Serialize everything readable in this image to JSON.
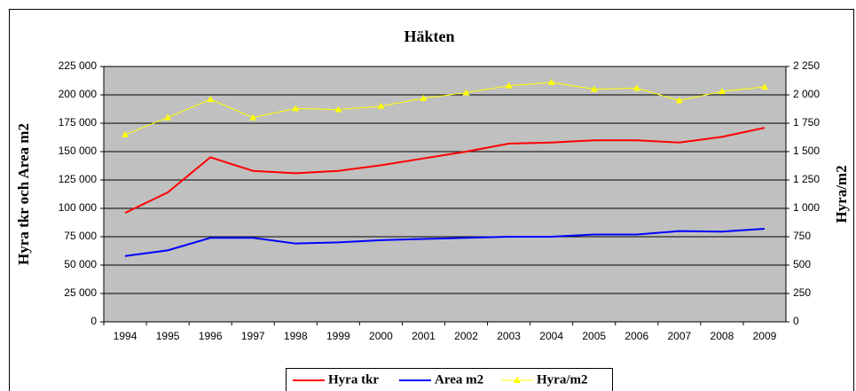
{
  "chart_data": {
    "type": "line",
    "title": "Häkten",
    "y_label": "Hyra tkr och Area m2",
    "y2_label": "Hyra/m2",
    "categories": [
      "1994",
      "1995",
      "1996",
      "1997",
      "1998",
      "1999",
      "2000",
      "2001",
      "2002",
      "2003",
      "2004",
      "2005",
      "2006",
      "2007",
      "2008",
      "2009"
    ],
    "series": [
      {
        "name": "Hyra tkr",
        "color": "#ff0000",
        "values": [
          96000,
          114000,
          145000,
          133000,
          131000,
          133000,
          138000,
          144000,
          150000,
          157000,
          158000,
          160000,
          160000,
          158000,
          163000,
          171000
        ]
      },
      {
        "name": "Area m2",
        "color": "#0000ff",
        "values": [
          58000,
          63000,
          74000,
          74000,
          69000,
          70000,
          72000,
          73000,
          74000,
          75000,
          75000,
          77000,
          77000,
          80000,
          79500,
          82000
        ]
      },
      {
        "name": "Hyra/m2",
        "color": "#ffff00",
        "axis": "y2",
        "marker": "triangle",
        "values": [
          1650,
          1800,
          1960,
          1800,
          1880,
          1870,
          1900,
          1970,
          2020,
          2080,
          2110,
          2050,
          2060,
          1950,
          2030,
          2070
        ]
      }
    ],
    "ylim": [
      0,
      225000
    ],
    "yticks": [
      0,
      {
        "value": 25000,
        "label": "25 000"
      },
      {
        "value": 50000,
        "label": "50 000"
      },
      {
        "value": 75000,
        "label": "75 000"
      },
      {
        "value": 100000,
        "label": "100 000"
      },
      {
        "value": 125000,
        "label": "125 000"
      },
      {
        "value": 150000,
        "label": "150 000"
      },
      {
        "value": 175000,
        "label": "175 000"
      },
      {
        "value": 200000,
        "label": "200 000"
      },
      {
        "value": 225000,
        "label": "225 000"
      }
    ],
    "y2lim": [
      0,
      2250
    ],
    "y2ticks": [
      0,
      250,
      500,
      750,
      {
        "value": 1000,
        "label": "1 000"
      },
      {
        "value": 1250,
        "label": "1 250"
      },
      {
        "value": 1500,
        "label": "1 500"
      },
      {
        "value": 1750,
        "label": "1 750"
      },
      {
        "value": 2000,
        "label": "2 000"
      },
      {
        "value": 2250,
        "label": "2 250"
      }
    ],
    "grid": true,
    "legend": "bottom",
    "plot_background": "#c0c0c0"
  }
}
